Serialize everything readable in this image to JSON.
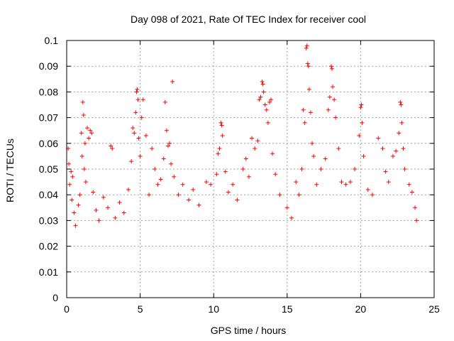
{
  "chart_data": {
    "type": "scatter",
    "title": "Day 098 of 2021, Rate Of TEC Index for receiver cool",
    "xlabel": "GPS time / hours",
    "ylabel": "ROTI / TECUs",
    "xlim": [
      0,
      25
    ],
    "ylim": [
      0,
      0.1
    ],
    "x_ticks": [
      0,
      5,
      10,
      15,
      20,
      25
    ],
    "x_tick_labels": [
      "0",
      "5",
      "10",
      "15",
      "20",
      "25"
    ],
    "y_ticks": [
      0,
      0.01,
      0.02,
      0.03,
      0.04,
      0.05,
      0.06,
      0.07,
      0.08,
      0.09,
      0.1
    ],
    "y_tick_labels": [
      "0",
      "0.01",
      "0.02",
      "0.03",
      "0.04",
      "0.05",
      "0.06",
      "0.07",
      "0.08",
      "0.09",
      "0.1"
    ],
    "grid": true,
    "marker": "plus",
    "series": [
      {
        "color": "#ff0000",
        "points": [
          [
            0.1,
            0.058
          ],
          [
            0.15,
            0.052
          ],
          [
            0.2,
            0.044
          ],
          [
            0.3,
            0.049
          ],
          [
            0.35,
            0.038
          ],
          [
            0.4,
            0.047
          ],
          [
            0.5,
            0.033
          ],
          [
            0.6,
            0.028
          ],
          [
            0.8,
            0.036
          ],
          [
            0.9,
            0.04
          ],
          [
            1.0,
            0.064
          ],
          [
            1.05,
            0.055
          ],
          [
            1.1,
            0.076
          ],
          [
            1.15,
            0.071
          ],
          [
            1.2,
            0.05
          ],
          [
            1.25,
            0.06
          ],
          [
            1.3,
            0.045
          ],
          [
            1.4,
            0.066
          ],
          [
            1.5,
            0.062
          ],
          [
            1.6,
            0.065
          ],
          [
            1.7,
            0.064
          ],
          [
            1.8,
            0.041
          ],
          [
            2.0,
            0.034
          ],
          [
            2.2,
            0.03
          ],
          [
            2.5,
            0.039
          ],
          [
            2.8,
            0.035
          ],
          [
            3.0,
            0.059
          ],
          [
            3.1,
            0.058
          ],
          [
            3.3,
            0.031
          ],
          [
            3.6,
            0.037
          ],
          [
            3.9,
            0.033
          ],
          [
            4.2,
            0.042
          ],
          [
            4.4,
            0.053
          ],
          [
            4.5,
            0.066
          ],
          [
            4.6,
            0.064
          ],
          [
            4.7,
            0.072
          ],
          [
            4.75,
            0.08
          ],
          [
            4.8,
            0.081
          ],
          [
            4.85,
            0.077
          ],
          [
            4.9,
            0.062
          ],
          [
            5.0,
            0.055
          ],
          [
            5.1,
            0.07
          ],
          [
            5.2,
            0.077
          ],
          [
            5.4,
            0.063
          ],
          [
            5.6,
            0.04
          ],
          [
            5.8,
            0.058
          ],
          [
            6.0,
            0.05
          ],
          [
            6.2,
            0.044
          ],
          [
            6.4,
            0.046
          ],
          [
            6.6,
            0.054
          ],
          [
            6.7,
            0.076
          ],
          [
            6.8,
            0.065
          ],
          [
            6.9,
            0.059
          ],
          [
            7.0,
            0.06
          ],
          [
            7.1,
            0.052
          ],
          [
            7.2,
            0.084
          ],
          [
            7.3,
            0.047
          ],
          [
            7.6,
            0.04
          ],
          [
            7.9,
            0.044
          ],
          [
            8.3,
            0.038
          ],
          [
            8.6,
            0.042
          ],
          [
            9.0,
            0.036
          ],
          [
            9.5,
            0.045
          ],
          [
            9.8,
            0.044
          ],
          [
            10.2,
            0.048
          ],
          [
            10.3,
            0.056
          ],
          [
            10.4,
            0.058
          ],
          [
            10.5,
            0.068
          ],
          [
            10.55,
            0.067
          ],
          [
            10.6,
            0.063
          ],
          [
            10.8,
            0.049
          ],
          [
            11.0,
            0.041
          ],
          [
            11.3,
            0.044
          ],
          [
            11.6,
            0.038
          ],
          [
            12.0,
            0.05
          ],
          [
            12.2,
            0.054
          ],
          [
            12.4,
            0.047
          ],
          [
            12.6,
            0.062
          ],
          [
            12.8,
            0.058
          ],
          [
            13.0,
            0.061
          ],
          [
            13.1,
            0.077
          ],
          [
            13.2,
            0.078
          ],
          [
            13.3,
            0.084
          ],
          [
            13.35,
            0.083
          ],
          [
            13.4,
            0.08
          ],
          [
            13.5,
            0.075
          ],
          [
            13.6,
            0.073
          ],
          [
            13.7,
            0.068
          ],
          [
            13.8,
            0.076
          ],
          [
            13.9,
            0.077
          ],
          [
            14.0,
            0.056
          ],
          [
            14.2,
            0.048
          ],
          [
            14.5,
            0.04
          ],
          [
            15.0,
            0.035
          ],
          [
            15.3,
            0.031
          ],
          [
            15.6,
            0.045
          ],
          [
            15.8,
            0.04
          ],
          [
            16.0,
            0.05
          ],
          [
            16.1,
            0.073
          ],
          [
            16.2,
            0.068
          ],
          [
            16.3,
            0.097
          ],
          [
            16.35,
            0.098
          ],
          [
            16.4,
            0.091
          ],
          [
            16.45,
            0.09
          ],
          [
            16.5,
            0.081
          ],
          [
            16.6,
            0.072
          ],
          [
            16.7,
            0.06
          ],
          [
            16.8,
            0.055
          ],
          [
            17.0,
            0.044
          ],
          [
            17.3,
            0.05
          ],
          [
            17.6,
            0.054
          ],
          [
            17.8,
            0.073
          ],
          [
            17.9,
            0.078
          ],
          [
            18.0,
            0.09
          ],
          [
            18.05,
            0.089
          ],
          [
            18.1,
            0.082
          ],
          [
            18.2,
            0.077
          ],
          [
            18.3,
            0.07
          ],
          [
            18.5,
            0.058
          ],
          [
            18.7,
            0.045
          ],
          [
            19.0,
            0.044
          ],
          [
            19.3,
            0.045
          ],
          [
            19.6,
            0.05
          ],
          [
            19.9,
            0.063
          ],
          [
            20.0,
            0.074
          ],
          [
            20.05,
            0.075
          ],
          [
            20.1,
            0.068
          ],
          [
            20.2,
            0.055
          ],
          [
            20.5,
            0.042
          ],
          [
            20.8,
            0.04
          ],
          [
            21.2,
            0.062
          ],
          [
            21.5,
            0.058
          ],
          [
            21.7,
            0.049
          ],
          [
            21.9,
            0.045
          ],
          [
            22.2,
            0.055
          ],
          [
            22.4,
            0.057
          ],
          [
            22.6,
            0.064
          ],
          [
            22.7,
            0.076
          ],
          [
            22.75,
            0.075
          ],
          [
            22.8,
            0.068
          ],
          [
            22.9,
            0.058
          ],
          [
            23.0,
            0.05
          ],
          [
            23.3,
            0.044
          ],
          [
            23.5,
            0.041
          ],
          [
            23.7,
            0.035
          ],
          [
            23.8,
            0.03
          ]
        ]
      }
    ]
  }
}
